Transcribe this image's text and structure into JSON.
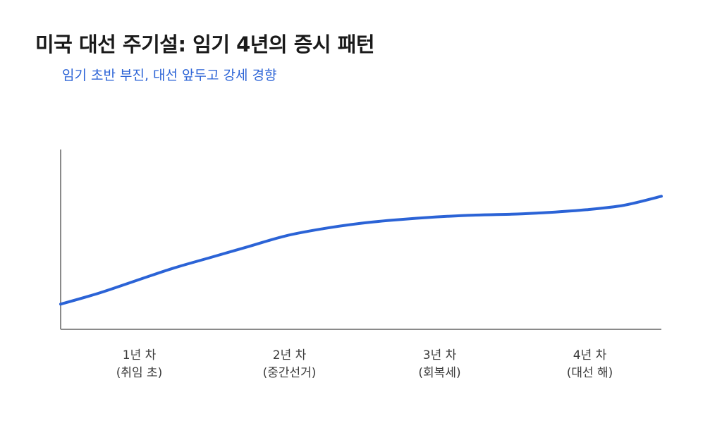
{
  "title": "미국 대선 주기설: 임기 4년의 증시 패턴",
  "subtitle": "임기 초반 부진, 대선 앞두고 강세 경향",
  "colors": {
    "line": "#2b63d6",
    "axis": "#8a8a8a",
    "title": "#1a1a1a",
    "subtitle": "#2b63d6",
    "tick_label": "#3a3a3a"
  },
  "chart_data": {
    "type": "line",
    "title": "미국 대선 주기설: 임기 4년의 증시 패턴",
    "subtitle": "임기 초반 부진, 대선 앞두고 강세 경향",
    "xlabel": "",
    "ylabel": "",
    "categories": [
      [
        "1년 차",
        "(취임 초)"
      ],
      [
        "2년 차",
        "(중간선거)"
      ],
      [
        "3년 차",
        "(회복세)"
      ],
      [
        "4년 차",
        "(대선 해)"
      ]
    ],
    "xlim": [
      0,
      4
    ],
    "ylim": [
      0,
      100
    ],
    "y_ticks_shown": false,
    "grid": false,
    "legend": "none",
    "series": [
      {
        "x": [
          0,
          0.25,
          0.5,
          0.75,
          1.0,
          1.25,
          1.5,
          1.75,
          2.0,
          2.25,
          2.5,
          2.75,
          3.0,
          3.25,
          3.5,
          3.75,
          4.0
        ],
        "values": [
          14,
          20,
          27,
          34,
          40,
          46,
          52,
          56,
          59,
          61,
          62.5,
          63.5,
          64,
          65,
          66.5,
          69,
          74
        ]
      }
    ]
  }
}
